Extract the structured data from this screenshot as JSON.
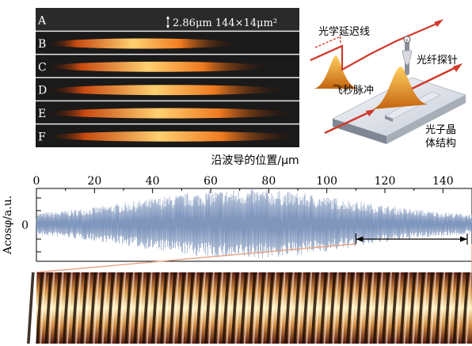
{
  "strip_panel": {
    "letters": [
      "A",
      "B",
      "C",
      "D",
      "E",
      "F"
    ],
    "scale_label": "2.86μm 144×14μm²"
  },
  "schematic": {
    "delay_line_label": "光学延迟线",
    "fiber_probe_label": "光纤探针",
    "femtosecond_pulse_label": "飞秒脉冲",
    "photonic_crystal_label_line1": "光子晶",
    "photonic_crystal_label_line2": "体结构"
  },
  "chart_data": {
    "type": "line",
    "title": "沿波导的位置/μm",
    "xlabel": "沿波导的位置/μm",
    "ylabel": "Acosφ/a.u.",
    "x_ticks": [
      0,
      20,
      40,
      60,
      80,
      100,
      120,
      140
    ],
    "xlim": [
      0,
      150
    ],
    "y_ticks": [
      "0"
    ],
    "zoom_range": [
      110,
      150
    ],
    "trace_color": "#7f96bd",
    "zoom_line_color": "#e8a283"
  }
}
